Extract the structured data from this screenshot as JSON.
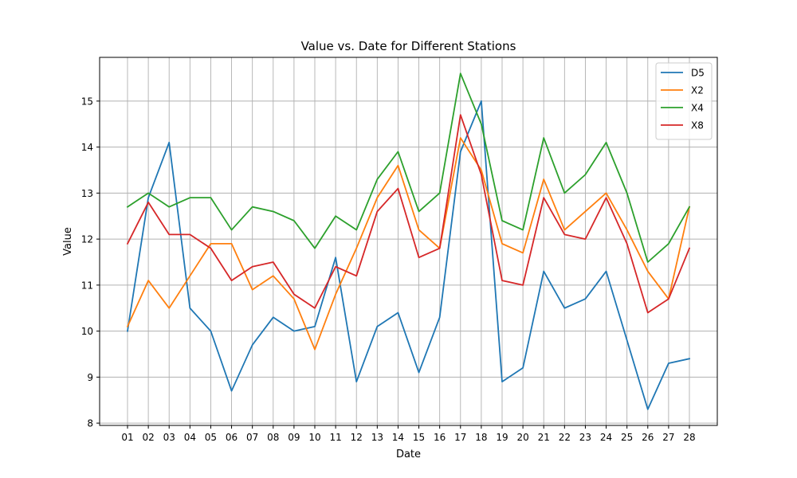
{
  "chart_data": {
    "type": "line",
    "title": "Value vs. Date for Different Stations",
    "xlabel": "Date",
    "ylabel": "Value",
    "categories": [
      "01",
      "02",
      "03",
      "04",
      "05",
      "06",
      "07",
      "08",
      "09",
      "10",
      "11",
      "12",
      "13",
      "14",
      "15",
      "16",
      "17",
      "18",
      "19",
      "20",
      "21",
      "22",
      "23",
      "24",
      "25",
      "26",
      "27",
      "28"
    ],
    "ylim": [
      7.95,
      15.95
    ],
    "yticks": [
      8,
      9,
      10,
      11,
      12,
      13,
      14,
      15
    ],
    "grid": true,
    "legend_position": "top-right",
    "series": [
      {
        "name": "D5",
        "color": "#1f77b4",
        "values": [
          10.0,
          12.9,
          14.1,
          10.5,
          10.0,
          8.7,
          9.7,
          10.3,
          10.0,
          10.1,
          11.6,
          8.9,
          10.1,
          10.4,
          9.1,
          10.3,
          13.9,
          15.0,
          8.9,
          9.2,
          11.3,
          10.5,
          10.7,
          11.3,
          9.8,
          8.3,
          9.3,
          9.4
        ]
      },
      {
        "name": "X2",
        "color": "#ff7f0e",
        "values": [
          10.1,
          11.1,
          10.5,
          11.2,
          11.9,
          11.9,
          10.9,
          11.2,
          10.7,
          9.6,
          10.8,
          11.8,
          12.9,
          13.6,
          12.2,
          11.8,
          14.2,
          13.5,
          11.9,
          11.7,
          13.3,
          12.2,
          12.6,
          13.0,
          12.2,
          11.3,
          10.7,
          12.7
        ]
      },
      {
        "name": "X4",
        "color": "#2ca02c",
        "values": [
          12.7,
          13.0,
          12.7,
          12.9,
          12.9,
          12.2,
          12.7,
          12.6,
          12.4,
          11.8,
          12.5,
          12.2,
          13.3,
          13.9,
          12.6,
          13.0,
          15.6,
          14.5,
          12.4,
          12.2,
          14.2,
          13.0,
          13.4,
          14.1,
          13.0,
          11.5,
          11.9,
          12.7
        ]
      },
      {
        "name": "X8",
        "color": "#d62728",
        "values": [
          11.9,
          12.8,
          12.1,
          12.1,
          11.8,
          11.1,
          11.4,
          11.5,
          10.8,
          10.5,
          11.4,
          11.2,
          12.6,
          13.1,
          11.6,
          11.8,
          14.7,
          13.4,
          11.1,
          11.0,
          12.9,
          12.1,
          12.0,
          12.9,
          11.9,
          10.4,
          10.7,
          11.8
        ]
      }
    ]
  }
}
